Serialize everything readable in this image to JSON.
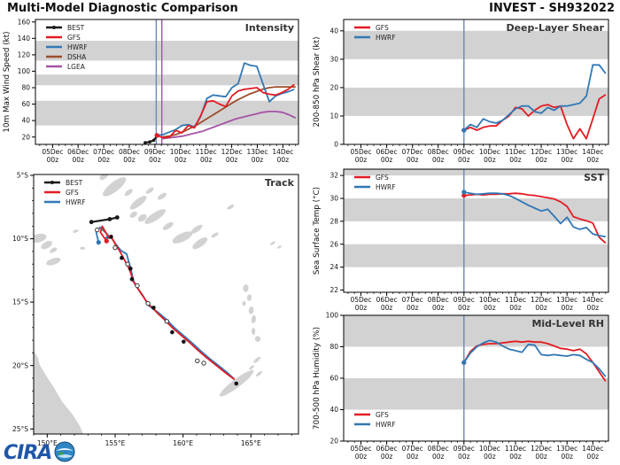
{
  "header": {
    "title": "Multi-Model Diagnostic Comparison",
    "storm_id": "INVEST - SH932022"
  },
  "logo": {
    "text": "CIRA"
  },
  "colors": {
    "band": "#d2d2d2",
    "land": "#d2d2d2",
    "init_line": "#6b87b5",
    "init_line2": "#9b59a8",
    "frame": "#000000",
    "panel_label": "#333333",
    "tick_text": "#111111"
  },
  "time_axis": {
    "days": [
      5,
      6,
      7,
      8,
      9,
      10,
      11,
      12,
      13,
      14
    ],
    "labels": [
      [
        "05Dec",
        "00z"
      ],
      [
        "06Dec",
        "00z"
      ],
      [
        "07Dec",
        "00z"
      ],
      [
        "08Dec",
        "00z"
      ],
      [
        "09Dec",
        "00z"
      ],
      [
        "10Dec",
        "00z"
      ],
      [
        "11Dec",
        "00z"
      ],
      [
        "12Dec",
        "00z"
      ],
      [
        "13Dec",
        "00z"
      ],
      [
        "14Dec",
        "00z"
      ]
    ]
  },
  "chart_data": [
    {
      "id": "intensity",
      "type": "line",
      "panel_label": "Intensity",
      "ylabel": "10m Max Wind Speed (kt)",
      "xdomain": [
        4.33,
        14.61
      ],
      "ydomain": [
        11,
        163
      ],
      "yticks": [
        20,
        40,
        60,
        80,
        100,
        120,
        140,
        160
      ],
      "bands": [
        [
          34,
          64
        ],
        [
          83,
          96
        ],
        [
          113,
          137
        ]
      ],
      "vlines": [
        {
          "x": 9.05,
          "color": "#6b87b5"
        },
        {
          "x": 9.27,
          "color": "#9b59a8"
        }
      ],
      "legend": {
        "pos": "tl",
        "entries": [
          "BEST",
          "GFS",
          "HWRF",
          "DSHA",
          "LGEA"
        ]
      },
      "series": [
        {
          "name": "BEST",
          "color": "#1a1a1a",
          "width": 2.2,
          "dots": true,
          "points": [
            [
              8.62,
              13
            ],
            [
              8.8,
              14
            ],
            [
              8.95,
              16
            ],
            [
              9.08,
              21
            ]
          ]
        },
        {
          "name": "DSHA",
          "color": "#9d4e2c",
          "width": 1.8,
          "t0": 9.3,
          "dt": 0.26,
          "values": [
            20,
            21,
            23,
            26,
            30,
            34,
            39,
            44,
            49,
            54,
            59,
            64,
            68,
            72,
            75,
            78,
            80,
            81,
            81,
            81,
            81
          ]
        },
        {
          "name": "LGEA",
          "color": "#a653a6",
          "width": 1.8,
          "t0": 9.3,
          "dt": 0.26,
          "values": [
            18,
            19,
            20,
            21,
            23,
            25,
            27,
            30,
            33,
            36,
            39,
            42,
            44,
            46,
            48,
            50,
            51,
            51,
            50,
            47,
            43
          ]
        },
        {
          "name": "HWRF",
          "color": "#3178b5",
          "width": 1.8,
          "t0": 9.08,
          "dt": 0.244,
          "start_dot": true,
          "values": [
            22,
            23,
            26,
            29,
            34,
            35,
            32,
            45,
            67,
            71,
            70,
            69,
            80,
            85,
            110,
            107,
            106,
            84,
            63,
            70,
            73,
            75,
            78
          ]
        },
        {
          "name": "GFS",
          "color": "#e41b23",
          "width": 1.8,
          "t0": 9.08,
          "dt": 0.244,
          "start_dot": true,
          "values": [
            22,
            19,
            20,
            28,
            25,
            34,
            31,
            46,
            63,
            64,
            60,
            57,
            70,
            76,
            78,
            79,
            80,
            74,
            72,
            71,
            74,
            78,
            84
          ]
        }
      ]
    },
    {
      "id": "shear",
      "type": "line",
      "panel_label": "Deep-Layer Shear",
      "ylabel": "200-850 hPa Shear (kt)",
      "xdomain": [
        4.33,
        14.61
      ],
      "ydomain": [
        0,
        44
      ],
      "yticks": [
        0,
        10,
        20,
        30,
        40
      ],
      "bands": [
        [
          10,
          20
        ],
        [
          30,
          40
        ]
      ],
      "vlines": [
        {
          "x": 9.0,
          "color": "#6b87b5"
        }
      ],
      "legend": {
        "pos": "tl",
        "entries": [
          "GFS",
          "HWRF"
        ]
      },
      "series": [
        {
          "name": "GFS",
          "color": "#e41b23",
          "width": 1.8,
          "t0": 9.0,
          "dt": 0.25,
          "start_dot": true,
          "values": [
            5,
            6,
            5,
            6,
            6.5,
            6.5,
            8.5,
            10,
            13,
            12.5,
            10,
            12,
            13.5,
            14,
            13,
            13.5,
            7,
            2,
            5.5,
            2,
            9,
            16,
            17.5
          ]
        },
        {
          "name": "HWRF",
          "color": "#3178b5",
          "width": 1.8,
          "t0": 9.0,
          "dt": 0.25,
          "start_dot": true,
          "values": [
            5,
            7,
            6,
            9,
            8,
            7.5,
            8.5,
            10.5,
            12.5,
            13.5,
            13.5,
            11.5,
            11,
            13,
            12,
            13.5,
            13.5,
            14,
            14.5,
            17,
            28,
            28,
            25
          ]
        }
      ]
    },
    {
      "id": "sst",
      "type": "line",
      "panel_label": "SST",
      "ylabel": "Sea Surface Temp (°C)",
      "xdomain": [
        4.33,
        14.61
      ],
      "ydomain": [
        21.8,
        32.55
      ],
      "yticks": [
        22,
        24,
        26,
        28,
        30,
        32
      ],
      "bands": [
        [
          24,
          26
        ],
        [
          28,
          30
        ],
        [
          32,
          32.55
        ]
      ],
      "vlines": [
        {
          "x": 9.0,
          "color": "#6b87b5"
        }
      ],
      "legend": {
        "pos": "tl",
        "entries": [
          "GFS",
          "HWRF"
        ]
      },
      "series": [
        {
          "name": "GFS",
          "color": "#e41b23",
          "width": 1.8,
          "t0": 9.0,
          "dt": 0.25,
          "start_dot": true,
          "values": [
            30.25,
            30.3,
            30.35,
            30.3,
            30.35,
            30.35,
            30.4,
            30.4,
            30.45,
            30.4,
            30.3,
            30.25,
            30.15,
            30.05,
            29.95,
            29.7,
            29.3,
            28.4,
            28.2,
            28.05,
            27.85,
            26.6,
            26.1
          ]
        },
        {
          "name": "HWRF",
          "color": "#3178b5",
          "width": 1.8,
          "t0": 9.0,
          "dt": 0.25,
          "start_dot": true,
          "values": [
            30.55,
            30.45,
            30.35,
            30.4,
            30.45,
            30.45,
            30.4,
            30.25,
            30.0,
            29.7,
            29.4,
            29.15,
            28.9,
            29.05,
            28.45,
            27.8,
            28.35,
            27.5,
            27.3,
            27.45,
            26.9,
            26.75,
            26.65
          ]
        }
      ]
    },
    {
      "id": "rh",
      "type": "line",
      "panel_label": "Mid-Level RH",
      "ylabel": "700-500 hPa Humidity (%)",
      "xdomain": [
        4.33,
        14.61
      ],
      "ydomain": [
        20,
        100
      ],
      "yticks": [
        20,
        40,
        60,
        80,
        100
      ],
      "bands": [
        [
          40,
          60
        ],
        [
          80,
          100
        ]
      ],
      "vlines": [
        {
          "x": 9.0,
          "color": "#6b87b5"
        }
      ],
      "legend": {
        "pos": "bl",
        "entries": [
          "GFS",
          "HWRF"
        ]
      },
      "series": [
        {
          "name": "GFS",
          "color": "#e41b23",
          "width": 1.8,
          "t0": 9.0,
          "dt": 0.25,
          "start_dot": true,
          "values": [
            70,
            77,
            80.5,
            81.5,
            82,
            82,
            82.5,
            83,
            83.5,
            83,
            83.5,
            83,
            83,
            82,
            80.5,
            79,
            78.5,
            77.5,
            78.5,
            75.5,
            70,
            64,
            58
          ]
        },
        {
          "name": "HWRF",
          "color": "#3178b5",
          "width": 1.8,
          "t0": 9.0,
          "dt": 0.25,
          "start_dot": true,
          "values": [
            70,
            76,
            80,
            82.5,
            84,
            83,
            80.5,
            78.5,
            77.5,
            76.5,
            81.5,
            81,
            75,
            74.5,
            75,
            74.5,
            74,
            75,
            74.5,
            72,
            70,
            66,
            61
          ]
        }
      ]
    },
    {
      "id": "track",
      "type": "map",
      "panel_label": "Track",
      "lon_domain": [
        149.0,
        168.5
      ],
      "lat_domain": [
        4.93,
        25.4
      ],
      "lon_ticks": [
        150,
        155,
        160,
        165
      ],
      "lon_tick_labels": [
        "150°E",
        "155°E",
        "160°E",
        "165°E"
      ],
      "lat_ticks": [
        5,
        10,
        15,
        20,
        25
      ],
      "lat_tick_labels": [
        "5°S",
        "10°S",
        "15°S",
        "20°S",
        "25°S"
      ],
      "legend": {
        "pos": "tl",
        "entries": [
          "BEST",
          "GFS",
          "HWRF"
        ]
      },
      "tracks": [
        {
          "name": "HWRF",
          "color": "#3178b5",
          "width": 1.8,
          "start_dot": true,
          "points": [
            [
              153.78,
              10.28
            ],
            [
              153.6,
              9.45
            ],
            [
              153.9,
              9.1
            ],
            [
              154.5,
              9.72
            ],
            [
              154.3,
              9.95
            ],
            [
              154.75,
              9.95
            ],
            [
              155.1,
              10.5
            ],
            [
              155.45,
              10.95
            ],
            [
              155.85,
              11.2
            ],
            [
              156.0,
              11.8
            ],
            [
              156.15,
              12.35
            ],
            [
              156.35,
              13.3
            ],
            [
              156.6,
              13.8
            ],
            [
              157.0,
              14.4
            ],
            [
              157.4,
              15.15
            ],
            [
              157.5,
              15.3
            ],
            [
              158.15,
              15.8
            ],
            [
              158.7,
              16.3
            ],
            [
              159.35,
              17.0
            ],
            [
              160.0,
              17.6
            ],
            [
              160.65,
              18.2
            ],
            [
              161.3,
              18.85
            ],
            [
              161.95,
              19.45
            ],
            [
              162.55,
              19.95
            ],
            [
              163.2,
              20.5
            ],
            [
              163.75,
              21.05
            ]
          ]
        },
        {
          "name": "GFS",
          "color": "#e41b23",
          "width": 1.8,
          "start_dot": true,
          "points": [
            [
              154.37,
              10.18
            ],
            [
              153.92,
              9.5
            ],
            [
              154.05,
              9.02
            ],
            [
              154.52,
              9.9
            ],
            [
              154.72,
              9.86
            ],
            [
              155.02,
              10.45
            ],
            [
              155.3,
              10.9
            ],
            [
              155.55,
              11.4
            ],
            [
              155.8,
              11.9
            ],
            [
              156.0,
              12.3
            ],
            [
              156.18,
              12.8
            ],
            [
              156.3,
              13.3
            ],
            [
              156.55,
              13.75
            ],
            [
              156.9,
              14.3
            ],
            [
              157.25,
              14.85
            ],
            [
              157.6,
              15.3
            ],
            [
              158.1,
              15.85
            ],
            [
              158.6,
              16.35
            ],
            [
              159.2,
              17.0
            ],
            [
              159.85,
              17.6
            ],
            [
              160.5,
              18.2
            ],
            [
              161.1,
              18.8
            ],
            [
              161.75,
              19.4
            ],
            [
              162.4,
              19.95
            ],
            [
              163.1,
              20.55
            ],
            [
              163.8,
              21.1
            ]
          ]
        },
        {
          "name": "BEST",
          "color": "#1a1a1a",
          "width": 2.2,
          "dots": true,
          "points": [
            [
              155.15,
              8.32
            ],
            [
              154.6,
              8.45
            ],
            [
              153.25,
              8.68
            ]
          ]
        }
      ],
      "markers": {
        "filled": [
          [
            154.7,
            9.84
          ],
          [
            155.48,
            11.51
          ],
          [
            156.13,
            12.35
          ],
          [
            156.24,
            13.19
          ],
          [
            157.83,
            15.44
          ],
          [
            159.2,
            17.37
          ],
          [
            160.05,
            18.12
          ],
          [
            163.92,
            21.42
          ]
        ],
        "open": [
          [
            153.68,
            9.3
          ],
          [
            155.0,
            10.7
          ],
          [
            155.92,
            12.0
          ],
          [
            156.63,
            13.7
          ],
          [
            157.42,
            15.1
          ],
          [
            158.81,
            16.51
          ],
          [
            161.05,
            19.63
          ],
          [
            161.53,
            19.81
          ]
        ]
      }
    }
  ]
}
